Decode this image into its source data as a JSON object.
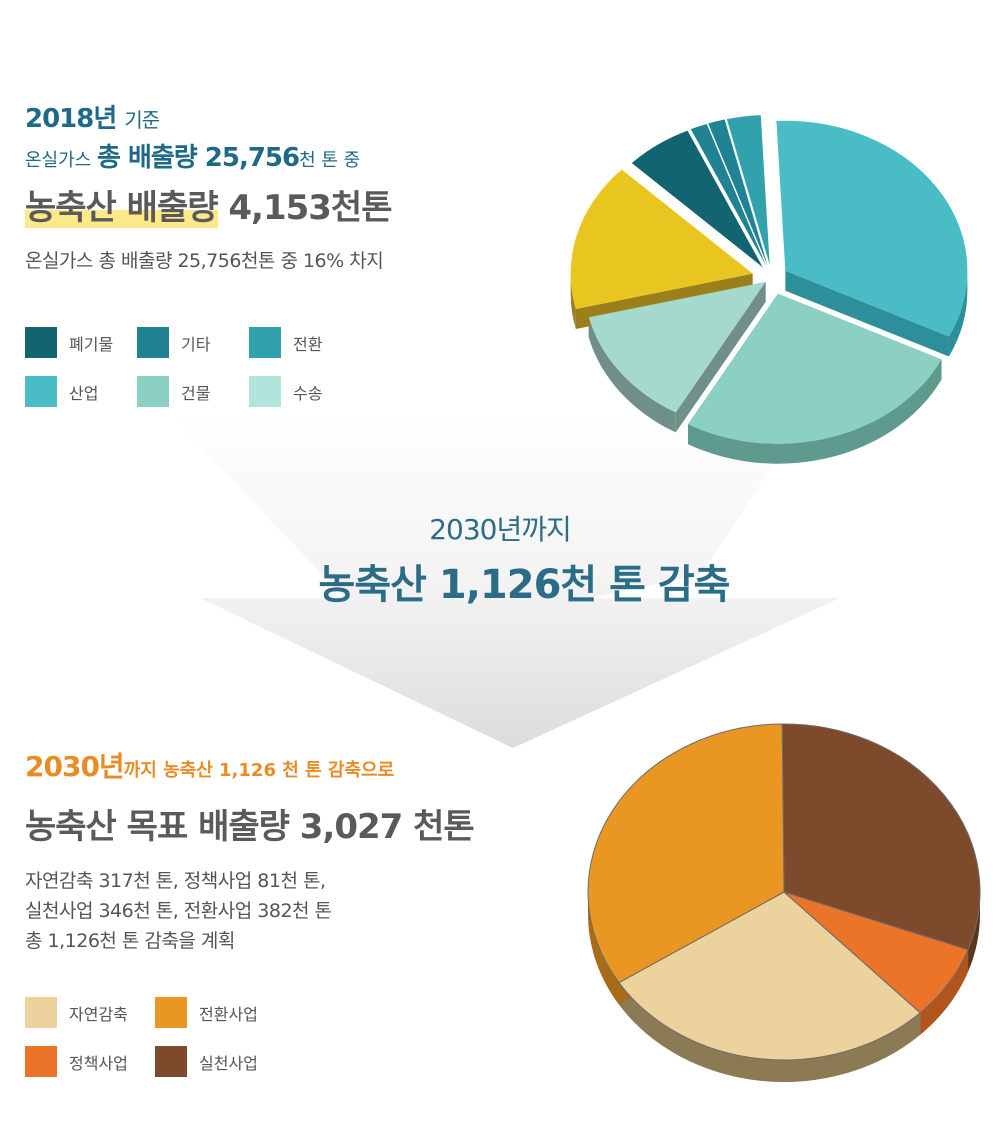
{
  "section1": {
    "year_label": "2018년",
    "year_suffix": "기준",
    "total_prefix": "온실가스",
    "total_main": "총 배출량 25,756",
    "total_suffix": "천 톤 중",
    "headline_highlight": "농축산 배출량",
    "headline_value": "4,153천톤",
    "description": "온실가스 총 배출량 25,756천톤 중 16% 차지"
  },
  "transition": {
    "sub": "2030년까지",
    "main": "농축산 1,126천 톤 감축"
  },
  "section2": {
    "year_label": "2030년",
    "year_text": "까지 농축산 1,126 천 톤 감축으로",
    "headline": "농축산 목표 배출량 3,027 천톤",
    "desc_line1": "자연감축 317천 톤, 정책사업 81천 톤,",
    "desc_line2": "실천사업 346천 톤, 전환사업 382천 톤",
    "desc_line3": "총 1,126천 톤 감축을 계획"
  },
  "legend1": [
    {
      "label": "폐기물",
      "color": "#126470"
    },
    {
      "label": "기타",
      "color": "#1f8393"
    },
    {
      "label": "전환",
      "color": "#31a2ad"
    },
    {
      "label": "산업",
      "color": "#49bcc5"
    },
    {
      "label": "건물",
      "color": "#8ccfc3"
    },
    {
      "label": "수송",
      "color": "#b1e5dc"
    }
  ],
  "legend2": [
    {
      "label": "자연감축",
      "color": "#ecd29c"
    },
    {
      "label": "전환사업",
      "color": "#ea9623"
    },
    {
      "label": "정책사업",
      "color": "#ec7428"
    },
    {
      "label": "실천사업",
      "color": "#7d4a2c"
    }
  ],
  "chart_data": [
    {
      "type": "pie",
      "title": "",
      "slices": [
        {
          "label": "산업",
          "value": 33,
          "color": "#49bcc5",
          "side": "#2d8f99"
        },
        {
          "label": "",
          "value": 26,
          "color": "#8ccfc3",
          "side": "#5f9a8f"
        },
        {
          "label": "",
          "value": 13,
          "color": "#a6d9cd",
          "side": "#6f8f88"
        },
        {
          "label": "농축산",
          "value": 16,
          "color": "#e9c61f",
          "side": "#9a7f1a"
        },
        {
          "label": "",
          "value": 6,
          "color": "#126470",
          "side": "#0b434b"
        },
        {
          "label": "",
          "value": 1.5,
          "color": "#1f8393",
          "side": "#155a65"
        },
        {
          "label": "",
          "value": 1.5,
          "color": "#1f8393",
          "side": "#155a65"
        },
        {
          "label": "",
          "value": 3,
          "color": "#31a2ad",
          "side": "#237a82"
        }
      ]
    },
    {
      "type": "pie",
      "title": "",
      "slices": [
        {
          "label": "실천사업",
          "value": 346,
          "color": "#7d4a2c",
          "side": "#5b3520"
        },
        {
          "label": "정책사업",
          "value": 81,
          "color": "#ec7428",
          "side": "#b0561d"
        },
        {
          "label": "자연감축",
          "value": 317,
          "color": "#ecd29c",
          "side": "#8c7a55"
        },
        {
          "label": "전환사업",
          "value": 382,
          "color": "#ea9623",
          "side": "#a86c18"
        }
      ]
    }
  ]
}
